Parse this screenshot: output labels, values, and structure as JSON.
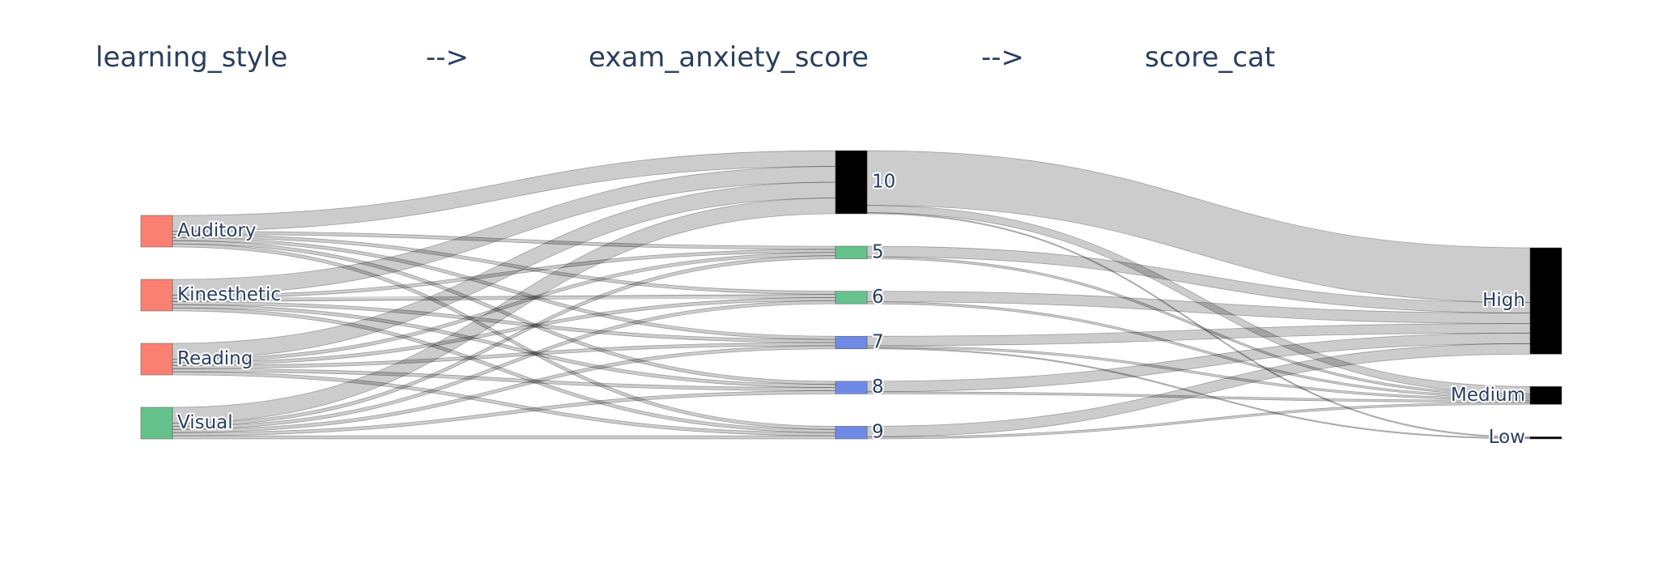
{
  "chart_data": {
    "type": "sankey",
    "headers": [
      "learning_style",
      "-->",
      "exam_anxiety_score",
      "-->",
      "score_cat"
    ],
    "nodes": [
      {
        "label": "Auditory",
        "color": "#fa8072"
      },
      {
        "label": "Kinesthetic",
        "color": "#fa8072"
      },
      {
        "label": "Reading",
        "color": "#fa8072"
      },
      {
        "label": "Visual",
        "color": "#66c28d"
      },
      {
        "label": "10",
        "color": "#000000"
      },
      {
        "label": "5",
        "color": "#66c28d"
      },
      {
        "label": "6",
        "color": "#66c28d"
      },
      {
        "label": "7",
        "color": "#6f8ae6"
      },
      {
        "label": "8",
        "color": "#6f8ae6"
      },
      {
        "label": "9",
        "color": "#6f8ae6"
      },
      {
        "label": "High",
        "color": "#000000"
      },
      {
        "label": "Medium",
        "color": "#000000"
      },
      {
        "label": "Low",
        "color": "#000000"
      }
    ],
    "links": [
      {
        "source": 0,
        "target": 4,
        "value": 15
      },
      {
        "source": 0,
        "target": 5,
        "value": 3
      },
      {
        "source": 0,
        "target": 6,
        "value": 3
      },
      {
        "source": 0,
        "target": 7,
        "value": 3
      },
      {
        "source": 0,
        "target": 8,
        "value": 3
      },
      {
        "source": 0,
        "target": 9,
        "value": 3
      },
      {
        "source": 1,
        "target": 4,
        "value": 15
      },
      {
        "source": 1,
        "target": 5,
        "value": 3
      },
      {
        "source": 1,
        "target": 6,
        "value": 3
      },
      {
        "source": 1,
        "target": 7,
        "value": 3
      },
      {
        "source": 1,
        "target": 8,
        "value": 3
      },
      {
        "source": 1,
        "target": 9,
        "value": 3
      },
      {
        "source": 2,
        "target": 4,
        "value": 15
      },
      {
        "source": 2,
        "target": 5,
        "value": 3
      },
      {
        "source": 2,
        "target": 6,
        "value": 3
      },
      {
        "source": 2,
        "target": 7,
        "value": 3
      },
      {
        "source": 2,
        "target": 8,
        "value": 3
      },
      {
        "source": 2,
        "target": 9,
        "value": 3
      },
      {
        "source": 3,
        "target": 4,
        "value": 15
      },
      {
        "source": 3,
        "target": 5,
        "value": 3
      },
      {
        "source": 3,
        "target": 6,
        "value": 3
      },
      {
        "source": 3,
        "target": 7,
        "value": 3
      },
      {
        "source": 3,
        "target": 8,
        "value": 3
      },
      {
        "source": 3,
        "target": 9,
        "value": 3
      },
      {
        "source": 4,
        "target": 10,
        "value": 52
      },
      {
        "source": 4,
        "target": 11,
        "value": 7
      },
      {
        "source": 4,
        "target": 12,
        "value": 1
      },
      {
        "source": 5,
        "target": 10,
        "value": 10
      },
      {
        "source": 5,
        "target": 11,
        "value": 2
      },
      {
        "source": 6,
        "target": 10,
        "value": 10
      },
      {
        "source": 6,
        "target": 11,
        "value": 2
      },
      {
        "source": 7,
        "target": 10,
        "value": 9
      },
      {
        "source": 7,
        "target": 11,
        "value": 2
      },
      {
        "source": 7,
        "target": 12,
        "value": 1
      },
      {
        "source": 8,
        "target": 10,
        "value": 10
      },
      {
        "source": 8,
        "target": 11,
        "value": 2
      },
      {
        "source": 9,
        "target": 10,
        "value": 10
      },
      {
        "source": 9,
        "target": 11,
        "value": 2
      }
    ],
    "link_color": "rgba(0,0,0,0.2)"
  }
}
